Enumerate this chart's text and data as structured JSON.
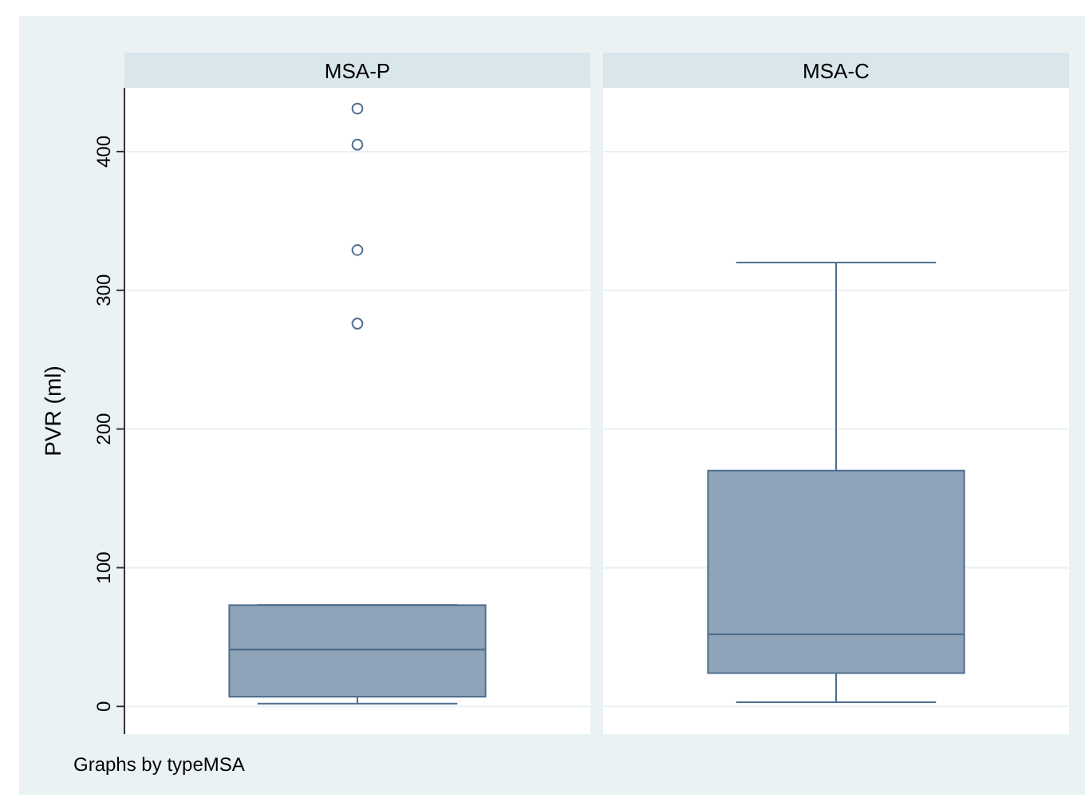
{
  "chart_data": {
    "type": "box",
    "ylabel": "PVR (ml)",
    "categories": [
      "MSA-P",
      "MSA-C"
    ],
    "boxes": [
      {
        "low": 2,
        "q1": 7,
        "median": 41,
        "q3": 73,
        "high": 73,
        "outliers": [
          276,
          329,
          405,
          431
        ]
      },
      {
        "low": 3,
        "q1": 24,
        "median": 52,
        "q3": 170,
        "high": 320
      }
    ],
    "ylim": [
      -20,
      446
    ],
    "yticks": [
      0,
      100,
      200,
      300,
      400
    ],
    "grid": "y",
    "annotations": [
      "Graphs by typeMSA"
    ]
  }
}
